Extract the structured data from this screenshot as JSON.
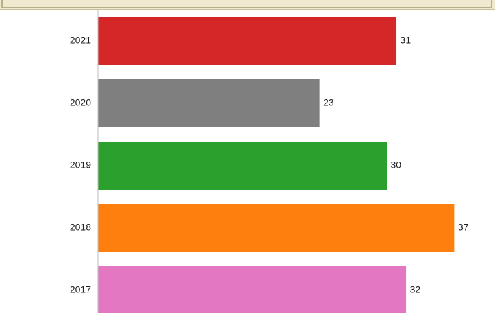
{
  "chart_data": {
    "type": "bar",
    "orientation": "horizontal",
    "title": "",
    "xlabel": "",
    "ylabel": "",
    "categories": [
      "2021",
      "2020",
      "2019",
      "2018",
      "2017"
    ],
    "values": [
      31,
      23,
      30,
      37,
      32
    ],
    "value_labels": [
      "31",
      "23",
      "30",
      "37",
      "32"
    ],
    "colors": [
      "#d62728",
      "#7f7f7f",
      "#2ca02c",
      "#ff7f0e",
      "#e377c2"
    ],
    "xlim": [
      0,
      40
    ],
    "grid": false,
    "legend": "none"
  }
}
